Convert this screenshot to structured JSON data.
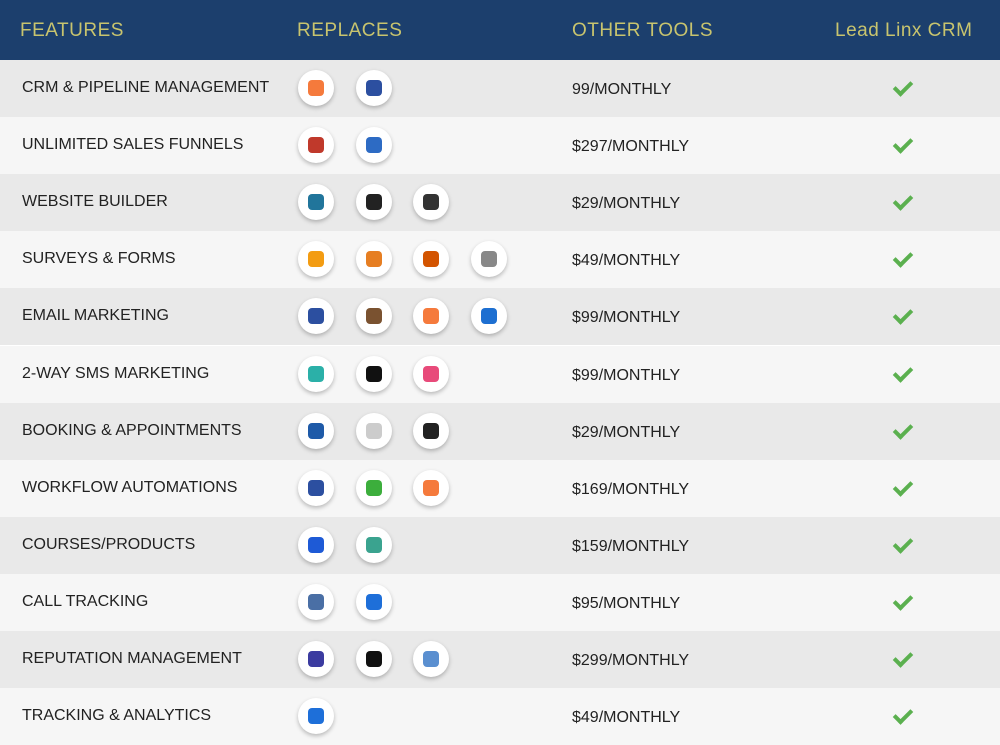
{
  "header": {
    "features": "FEATURES",
    "replaces": "REPLACES",
    "other_tools": "OTHER TOOLS",
    "lead_linx": "Lead Linx CRM"
  },
  "rows": [
    {
      "feature": "CRM & PIPELINE MANAGEMENT",
      "price": "99/MONTHLY"
    },
    {
      "feature": "UNLIMITED SALES FUNNELS",
      "price": "$297/MONTHLY"
    },
    {
      "feature": "WEBSITE BUILDER",
      "price": "$29/MONTHLY"
    },
    {
      "feature": "SURVEYS & FORMS",
      "price": "$49/MONTHLY"
    },
    {
      "feature": "EMAIL MARKETING",
      "price": "$99/MONTHLY"
    },
    {
      "feature": "2-WAY SMS MARKETING",
      "price": "$99/MONTHLY"
    },
    {
      "feature": "BOOKING & APPOINTMENTS",
      "price": "$29/MONTHLY"
    },
    {
      "feature": "WORKFLOW AUTOMATIONS",
      "price": "$169/MONTHLY"
    },
    {
      "feature": "COURSES/PRODUCTS",
      "price": "$159/MONTHLY"
    },
    {
      "feature": "CALL TRACKING",
      "price": "$95/MONTHLY"
    },
    {
      "feature": "REPUTATION MANAGEMENT",
      "price": "$299/MONTHLY"
    },
    {
      "feature": "TRACKING & ANALYTICS",
      "price": "$49/MONTHLY"
    }
  ]
}
